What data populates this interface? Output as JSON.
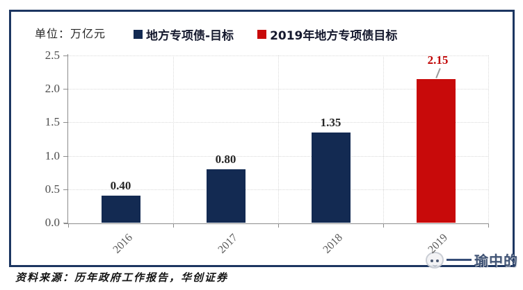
{
  "header": {
    "unit_label": "单位：万亿元"
  },
  "legend": {
    "items": [
      {
        "label": "地方专项债-目标",
        "color": "#132A52"
      },
      {
        "label": "2019年地方专项债目标",
        "color": "#C80A0A"
      }
    ]
  },
  "chart_data": {
    "type": "bar",
    "title": "",
    "xlabel": "",
    "ylabel": "万亿元",
    "unit_label": "单位：万亿元",
    "categories": [
      "2016",
      "2017",
      "2018",
      "2019"
    ],
    "values": [
      0.4,
      0.8,
      1.35,
      2.15
    ],
    "bar_value_labels": [
      "0.40",
      "0.80",
      "1.35",
      "2.15"
    ],
    "bar_colors": [
      "#132A52",
      "#132A52",
      "#132A52",
      "#C80A0A"
    ],
    "value_label_colors": [
      "#262626",
      "#262626",
      "#262626",
      "#C00000"
    ],
    "highlight_category": "2019",
    "callout_index": 3,
    "ylim": [
      0,
      2.5
    ],
    "ytick_labels": [
      "2.5",
      "2.0",
      "1.5",
      "1.0",
      "0.5",
      "0.0"
    ],
    "grid": "dotted",
    "legend_position": "top",
    "series_names": [
      "地方专项债-目标",
      "2019年地方专项债目标"
    ]
  },
  "footer": {
    "source": "资料来源：历年政府工作报告，华创证券"
  },
  "watermark": {
    "text": "瑜中的",
    "icon": "face-logo-icon"
  },
  "colors": {
    "navy": "#132A52",
    "red": "#C80A0A",
    "border": "#1C3661",
    "grid": "#D9D9D9",
    "axis": "#8C8C8C",
    "ytick_text": "#4D4D4D",
    "xtick_text": "#595959",
    "value_text": "#262626",
    "value_text_red": "#C00000"
  }
}
